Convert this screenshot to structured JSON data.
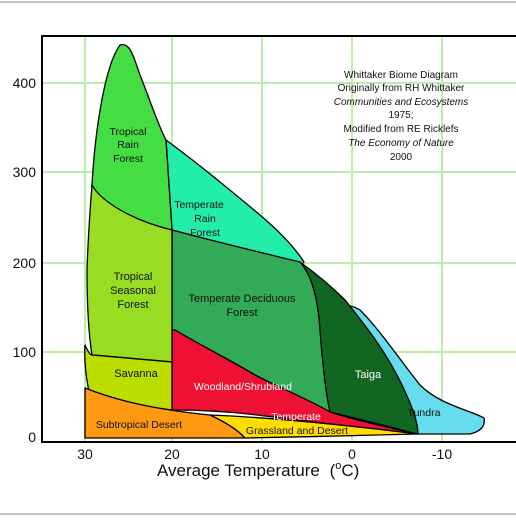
{
  "chart_data": {
    "type": "diagram",
    "xlabel": "Average Temperature",
    "xlabel_unit_prefix": "(",
    "xlabel_unit_sup": "o",
    "xlabel_unit_tail": "C)",
    "x_ticks": [
      "30",
      "20",
      "10",
      "0",
      "-10"
    ],
    "y_ticks": [
      "0",
      "100",
      "200",
      "300",
      "400"
    ],
    "grid": true,
    "colors": {
      "tropical_rain_forest": "#44dd44",
      "temperate_rain_forest": "#22eeaa",
      "tropical_seasonal_forest": "#99dd22",
      "temperate_deciduous_forest": "#33aa55",
      "taiga": "#116622",
      "savanna": "#bbdd00",
      "woodland_shrubland": "#ee1133",
      "tundra": "#66ddee",
      "subtropical_desert": "#ff9911",
      "temperate_grassland_desert": "#ffdd00",
      "grid": "#bbeeaa"
    },
    "note": {
      "line1": "Whittaker Biome Diagram",
      "line2": "Originally from RH Whittaker",
      "line3": "Communities and Ecosystems",
      "line4": "1975;",
      "line5": "Modified from RE Ricklefs",
      "line6": "The Economy of Nature",
      "line7": "2000"
    },
    "biomes": {
      "tropical_rain_forest": [
        "Tropical",
        "Rain",
        "Forest"
      ],
      "temperate_rain_forest": [
        "Temperate",
        "Rain",
        "Forest"
      ],
      "tropical_seasonal_forest": [
        "Tropical",
        "Seasonal",
        "Forest"
      ],
      "temperate_deciduous_forest": [
        "Temperate Deciduous",
        "Forest"
      ],
      "taiga": "Taiga",
      "savanna": "Savanna",
      "woodland_shrubland": "Woodland/Shrubland",
      "tundra": "Tundra",
      "subtropical_desert": "Subtropical Desert",
      "temperate_grassland_desert": [
        "Temperate",
        "Grassland and Desert"
      ]
    }
  }
}
